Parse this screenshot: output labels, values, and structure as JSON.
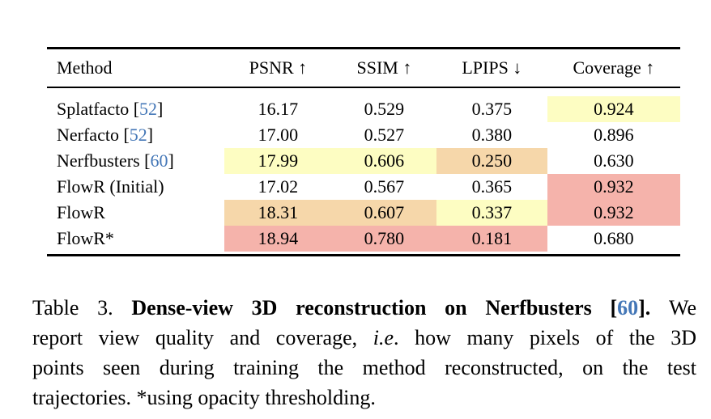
{
  "colors": {
    "citation_blue": "#4477B7",
    "highlight_yellow": "#FDFDC2",
    "highlight_orange": "#F6D7AA",
    "highlight_red": "#F5B3AB"
  },
  "table": {
    "columns": [
      "Method",
      "PSNR ↑",
      "SSIM ↑",
      "LPIPS ↓",
      "Coverage ↑"
    ],
    "rows": [
      {
        "method": "Splatfacto",
        "cite": "52",
        "cells": [
          {
            "v": "16.17",
            "hl": null
          },
          {
            "v": "0.529",
            "hl": null
          },
          {
            "v": "0.375",
            "hl": null
          },
          {
            "v": "0.924",
            "hl": "yellow"
          }
        ]
      },
      {
        "method": "Nerfacto",
        "cite": "52",
        "cells": [
          {
            "v": "17.00",
            "hl": null
          },
          {
            "v": "0.527",
            "hl": null
          },
          {
            "v": "0.380",
            "hl": null
          },
          {
            "v": "0.896",
            "hl": null
          }
        ]
      },
      {
        "method": "Nerfbusters",
        "cite": "60",
        "cells": [
          {
            "v": "17.99",
            "hl": "yellow"
          },
          {
            "v": "0.606",
            "hl": "yellow"
          },
          {
            "v": "0.250",
            "hl": "orange"
          },
          {
            "v": "0.630",
            "hl": null
          }
        ]
      },
      {
        "method": "FlowR (Initial)",
        "cite": null,
        "cells": [
          {
            "v": "17.02",
            "hl": null
          },
          {
            "v": "0.567",
            "hl": null
          },
          {
            "v": "0.365",
            "hl": null
          },
          {
            "v": "0.932",
            "hl": "red"
          }
        ]
      },
      {
        "method": "FlowR",
        "cite": null,
        "cells": [
          {
            "v": "18.31",
            "hl": "orange"
          },
          {
            "v": "0.607",
            "hl": "orange"
          },
          {
            "v": "0.337",
            "hl": "yellow"
          },
          {
            "v": "0.932",
            "hl": "red"
          }
        ]
      },
      {
        "method": "FlowR*",
        "cite": null,
        "cells": [
          {
            "v": "18.94",
            "hl": "red"
          },
          {
            "v": "0.780",
            "hl": "red"
          },
          {
            "v": "0.181",
            "hl": "red"
          },
          {
            "v": "0.680",
            "hl": null
          }
        ]
      }
    ]
  },
  "caption": {
    "lines": [
      {
        "segments": [
          {
            "text": "Table 3. ",
            "style": "normal"
          },
          {
            "text": "Dense-view 3D reconstruction on Nerfbusters [",
            "style": "bold"
          },
          {
            "text": "60",
            "style": "bold-cite"
          },
          {
            "text": "]. ",
            "style": "bold"
          },
          {
            "text": "We",
            "style": "normal"
          }
        ]
      },
      {
        "segments": [
          {
            "text": "report view quality and coverage, ",
            "style": "normal"
          },
          {
            "text": "i.e",
            "style": "italic"
          },
          {
            "text": ". how many pixels of the 3D",
            "style": "normal"
          }
        ]
      },
      {
        "segments": [
          {
            "text": "points seen during training the method reconstructed, on the test",
            "style": "normal"
          }
        ]
      },
      {
        "segments": [
          {
            "text": "trajectories. *using opacity thresholding.",
            "style": "normal"
          }
        ]
      }
    ]
  }
}
